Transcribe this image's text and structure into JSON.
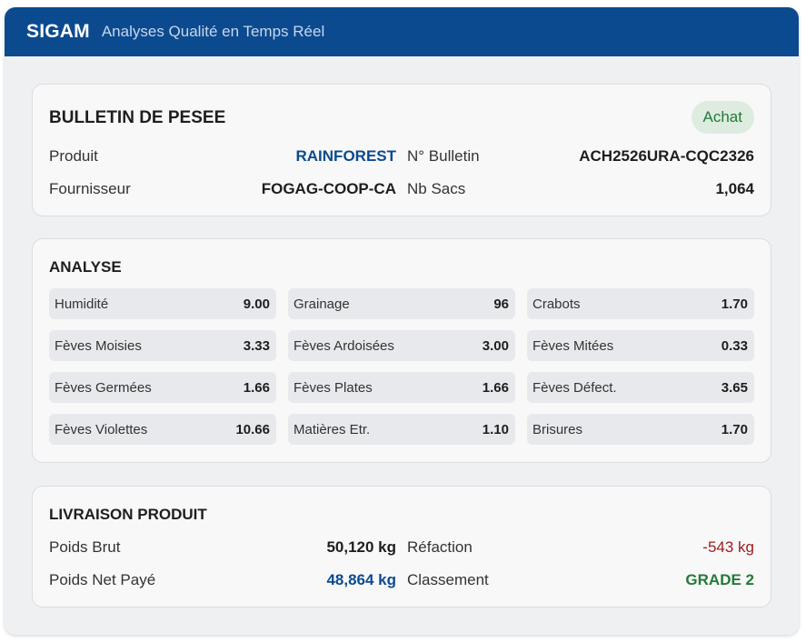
{
  "header": {
    "brand": "SIGAM",
    "subtitle": "Analyses Qualité en Temps Réel"
  },
  "bulletin": {
    "title": "BULLETIN DE PESEE",
    "badge": "Achat",
    "rows": [
      [
        {
          "label": "Produit",
          "value": "RAINFOREST"
        },
        {
          "label": "N° Bulletin",
          "value": "ACH2526URA-CQC2326"
        }
      ],
      [
        {
          "label": "Fournisseur",
          "value": "FOGAG-COOP-CA"
        },
        {
          "label": "Nb Sacs",
          "value": "1,064"
        }
      ]
    ]
  },
  "analyse": {
    "title": "ANALYSE",
    "cells": [
      {
        "label": "Humidité",
        "value": "9.00"
      },
      {
        "label": "Grainage",
        "value": "96"
      },
      {
        "label": "Crabots",
        "value": "1.70"
      },
      {
        "label": "Fèves Moisies",
        "value": "3.33"
      },
      {
        "label": "Fèves Ardoisées",
        "value": "3.00"
      },
      {
        "label": "Fèves Mitées",
        "value": "0.33"
      },
      {
        "label": "Fèves Germées",
        "value": "1.66"
      },
      {
        "label": "Fèves Plates",
        "value": "1.66"
      },
      {
        "label": "Fèves Défect.",
        "value": "3.65"
      },
      {
        "label": "Fèves Violettes",
        "value": "10.66"
      },
      {
        "label": "Matières Etr.",
        "value": "1.10"
      },
      {
        "label": "Brisures",
        "value": "1.70"
      }
    ]
  },
  "livraison": {
    "title": "LIVRAISON PRODUIT",
    "rows": [
      [
        {
          "label": "Poids Brut",
          "value": "50,120 kg"
        },
        {
          "label": "Réfaction",
          "value": "-543 kg"
        }
      ],
      [
        {
          "label": "Poids Net Payé",
          "value": "48,864 kg"
        },
        {
          "label": "Classement",
          "value": "GRADE 2"
        }
      ]
    ]
  },
  "colors": {
    "header_bg": "#0c4a8f",
    "accent_blue": "#0c4a8f",
    "negative_red": "#9b1c1c",
    "positive_green": "#237a38"
  }
}
